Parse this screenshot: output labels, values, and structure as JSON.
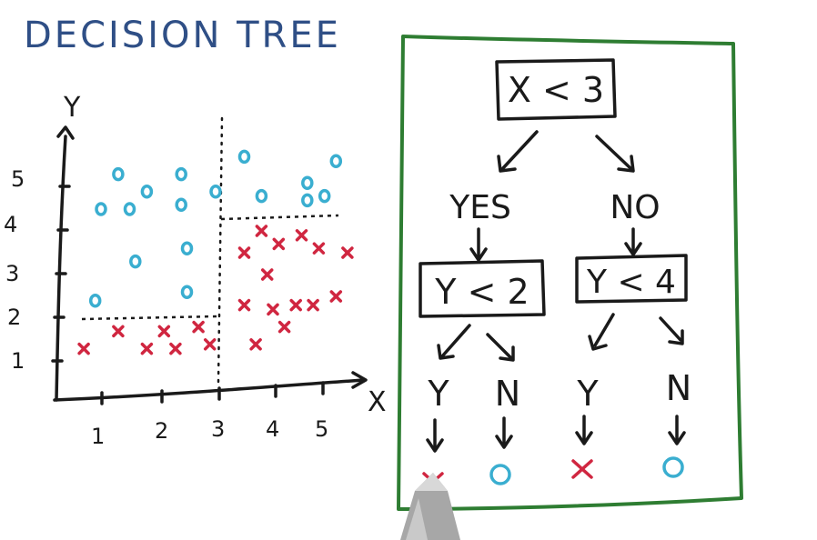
{
  "title": "DECISION TREE",
  "axes": {
    "x_label": "X",
    "y_label": "Y",
    "x_ticks": [
      "1",
      "2",
      "3",
      "4",
      "5"
    ],
    "y_ticks": [
      "1",
      "2",
      "3",
      "4",
      "5"
    ]
  },
  "colors": {
    "circle_class": "#3aaed0",
    "cross_class": "#d02640",
    "frame": "#2e7d32",
    "title": "#2f4f86"
  },
  "chart_data": {
    "type": "scatter",
    "series": [
      {
        "marker": "circle",
        "points": [
          [
            1.3,
            5.3
          ],
          [
            1.8,
            4.9
          ],
          [
            2.4,
            5.3
          ],
          [
            1.0,
            4.5
          ],
          [
            1.5,
            4.5
          ],
          [
            2.4,
            4.6
          ],
          [
            1.6,
            3.3
          ],
          [
            2.5,
            3.6
          ],
          [
            0.9,
            2.4
          ],
          [
            2.5,
            2.6
          ],
          [
            3.0,
            4.9
          ],
          [
            3.5,
            5.7
          ],
          [
            3.8,
            4.8
          ],
          [
            4.6,
            5.1
          ],
          [
            5.1,
            5.6
          ],
          [
            4.6,
            4.7
          ],
          [
            4.9,
            4.8
          ]
        ]
      },
      {
        "marker": "cross",
        "points": [
          [
            0.7,
            1.3
          ],
          [
            1.3,
            1.7
          ],
          [
            1.8,
            1.3
          ],
          [
            2.1,
            1.7
          ],
          [
            2.3,
            1.3
          ],
          [
            2.7,
            1.8
          ],
          [
            2.9,
            1.4
          ],
          [
            3.5,
            3.5
          ],
          [
            3.7,
            1.4
          ],
          [
            3.8,
            4.0
          ],
          [
            4.1,
            3.7
          ],
          [
            4.5,
            3.9
          ],
          [
            3.9,
            3.0
          ],
          [
            3.5,
            2.3
          ],
          [
            4.0,
            2.2
          ],
          [
            4.4,
            2.3
          ],
          [
            4.2,
            1.8
          ],
          [
            4.7,
            2.3
          ],
          [
            5.1,
            2.5
          ],
          [
            5.3,
            3.5
          ],
          [
            4.8,
            3.6
          ]
        ]
      }
    ],
    "split_lines": [
      {
        "axis": "x",
        "value": 3
      },
      {
        "axis": "y",
        "value": 2,
        "region": "x<3"
      },
      {
        "axis": "y",
        "value": 4,
        "region": "x>=3"
      }
    ]
  },
  "tree": {
    "root": "X < 3",
    "yes_label": "YES",
    "no_label": "NO",
    "left_node": "Y < 2",
    "right_node": "Y < 4",
    "branch_labels": [
      "Y",
      "N",
      "Y",
      "N"
    ],
    "leaves": [
      "cross",
      "circle",
      "cross",
      "circle"
    ]
  }
}
